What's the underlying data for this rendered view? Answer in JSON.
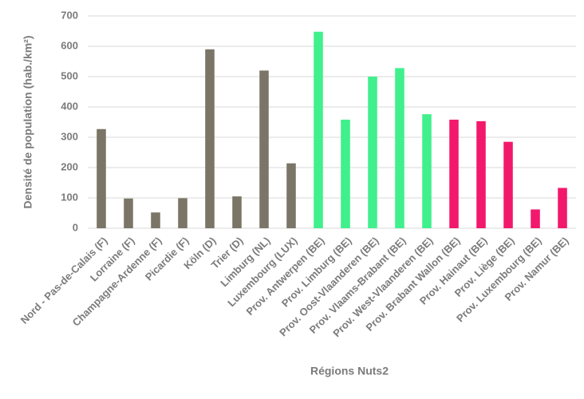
{
  "chart_data": {
    "type": "bar",
    "x_label": "Régions Nuts2",
    "y_label": "Densité de population (hab./km²)",
    "categories": [
      "Nord - Pas-de-Calais (F)",
      "Lorraine (F)",
      "Champagne-Ardenne (F)",
      "Picardie (F)",
      "Köln (D)",
      "Trier (D)",
      "Limburg (NL)",
      "Luxembourg (LUX)",
      "Prov. Antwerpen (BE)",
      "Prov. Limburg (BE)",
      "Prov. Oost-Vlaanderen (BE)",
      "Prov. Vlaams-Brabant (BE)",
      "Prov. West-Vlaanderen (BE)",
      "Prov. Brabant Wallon (BE)",
      "Prov. Hainaut (BE)",
      "Prov. Liège (BE)",
      "Prov. Luxembourg (BE)",
      "Prov. Namur (BE)"
    ],
    "values": [
      327,
      98,
      52,
      99,
      590,
      105,
      520,
      214,
      648,
      358,
      500,
      528,
      376,
      358,
      353,
      285,
      62,
      133
    ],
    "colors": [
      "#7a7566",
      "#7a7566",
      "#7a7566",
      "#7a7566",
      "#7a7566",
      "#7a7566",
      "#7a7566",
      "#7a7566",
      "#3ff08c",
      "#3ff08c",
      "#3ff08c",
      "#3ff08c",
      "#3ff08c",
      "#f2196c",
      "#f2196c",
      "#f2196c",
      "#f2196c",
      "#f2196c"
    ],
    "ylim": [
      0,
      700
    ],
    "yticks": [
      0,
      100,
      200,
      300,
      400,
      500,
      600,
      700
    ],
    "grid": true
  }
}
